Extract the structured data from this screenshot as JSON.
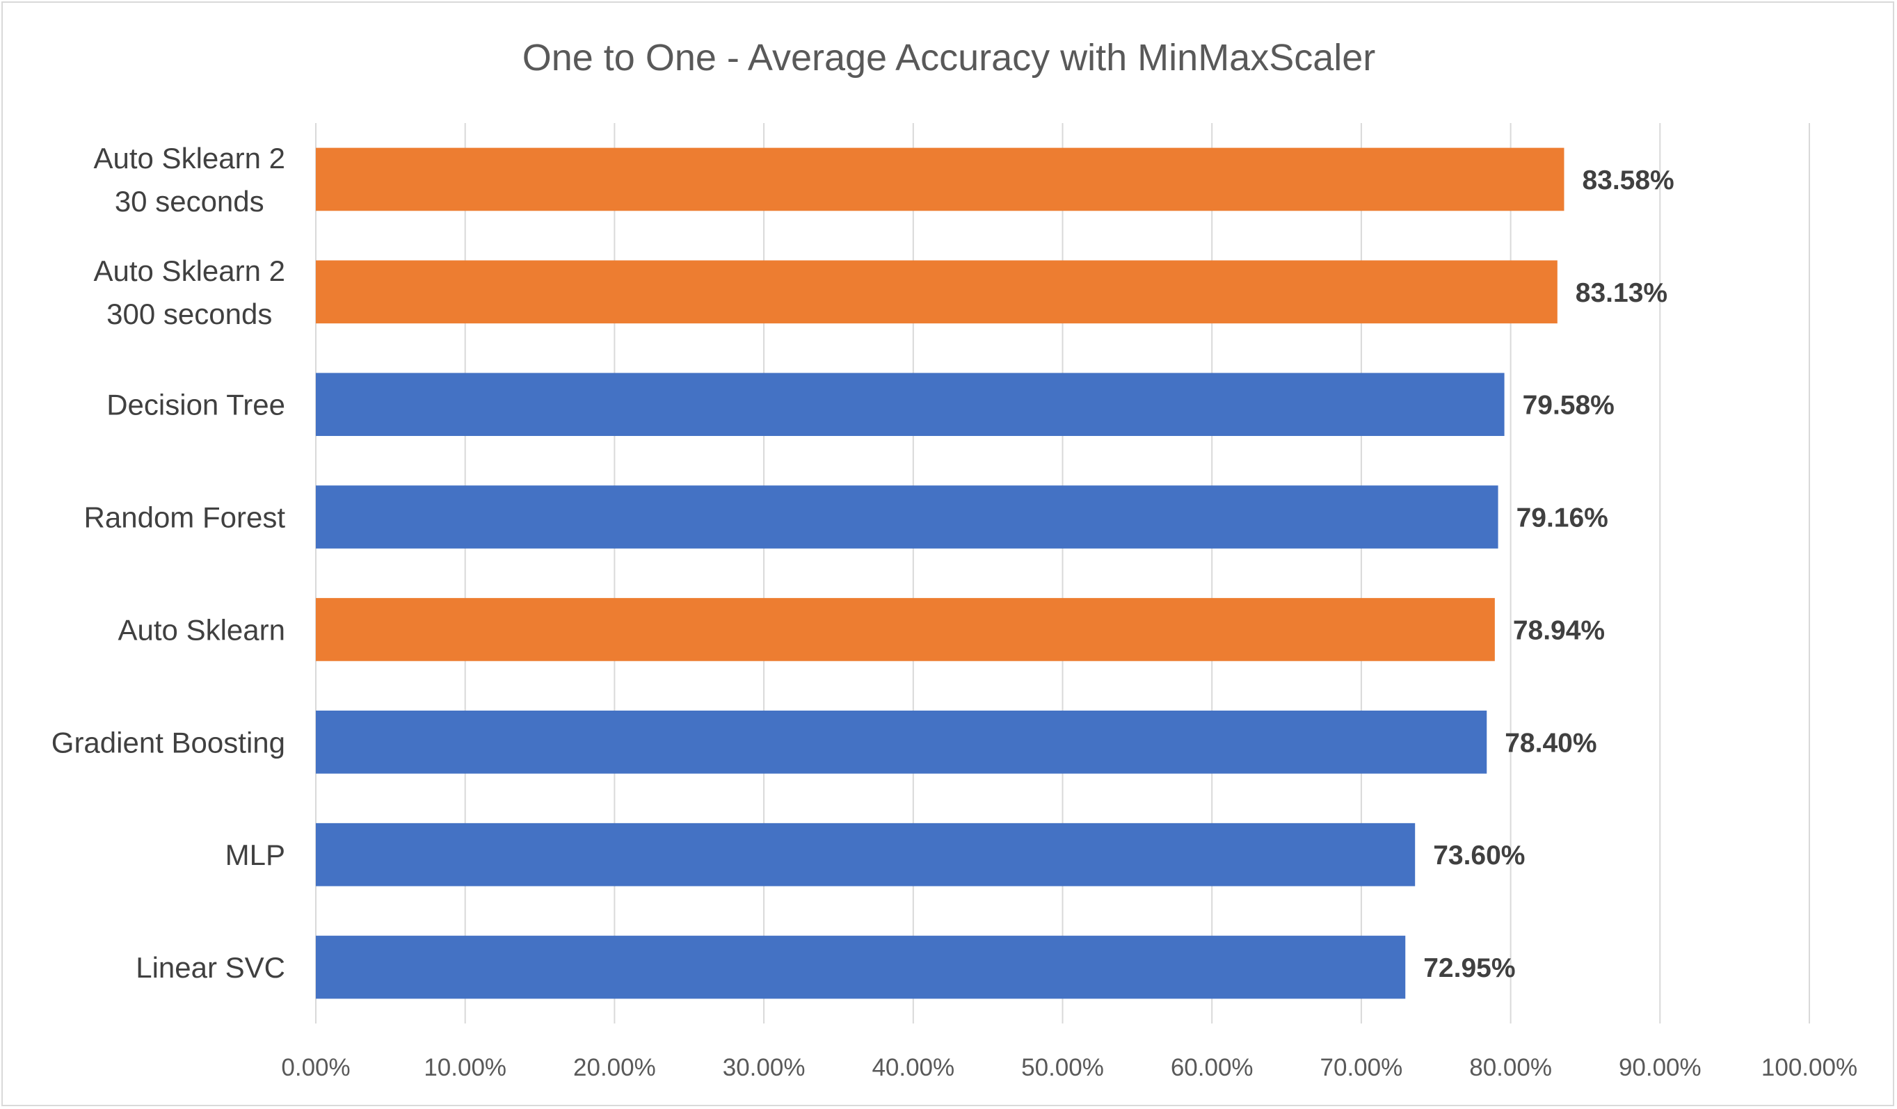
{
  "chart_data": {
    "type": "bar",
    "orientation": "horizontal",
    "title": "One to One - Average Accuracy with MinMaxScaler",
    "categories": [
      [
        "Auto Sklearn 2",
        "30 seconds"
      ],
      [
        "Auto Sklearn 2",
        "300 seconds"
      ],
      [
        "Decision Tree"
      ],
      [
        "Random Forest"
      ],
      [
        "Auto Sklearn"
      ],
      [
        "Gradient Boosting"
      ],
      [
        "MLP"
      ],
      [
        "Linear SVC"
      ]
    ],
    "values": [
      83.58,
      83.13,
      79.58,
      79.16,
      78.94,
      78.4,
      73.6,
      72.95
    ],
    "value_labels": [
      "83.58%",
      "83.13%",
      "79.58%",
      "79.16%",
      "78.94%",
      "78.40%",
      "73.60%",
      "72.95%"
    ],
    "bar_colors": [
      "#ED7D31",
      "#ED7D31",
      "#4472C4",
      "#4472C4",
      "#ED7D31",
      "#4472C4",
      "#4472C4",
      "#4472C4"
    ],
    "xlim": [
      0,
      100
    ],
    "x_ticks": [
      0,
      10,
      20,
      30,
      40,
      50,
      60,
      70,
      80,
      90,
      100
    ],
    "x_tick_labels": [
      "0.00%",
      "10.00%",
      "20.00%",
      "30.00%",
      "40.00%",
      "50.00%",
      "60.00%",
      "70.00%",
      "80.00%",
      "90.00%",
      "100.00%"
    ],
    "xlabel": "",
    "ylabel": "",
    "grid": "vertical",
    "legend": "none"
  }
}
